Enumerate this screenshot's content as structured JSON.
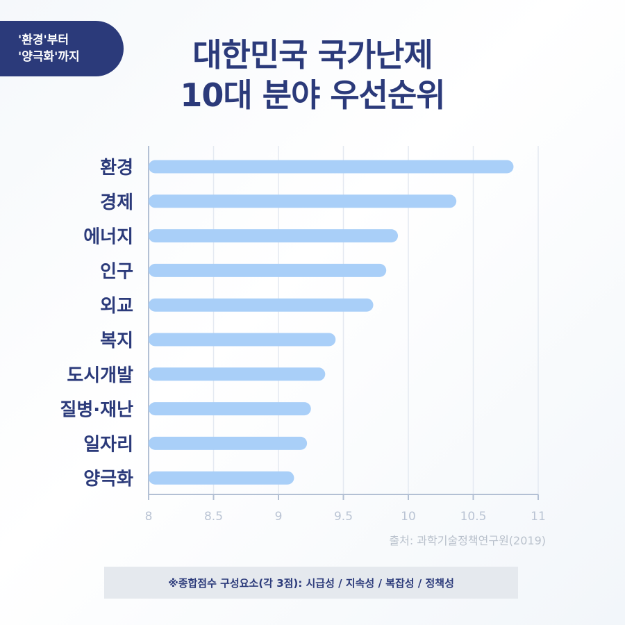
{
  "tag": {
    "line1": "'환경'부터",
    "line2": "'양극화'까지"
  },
  "title": {
    "line1": "대한민국 국가난제",
    "line2": "10대 분야 우선순위"
  },
  "source": "출처: 과학기술정책연구원(2019)",
  "note": "※종합점수 구성요소(각 3점): 시급성 / 지속성 / 복잡성 / 정책성",
  "colors": {
    "bar": "#a9cff8",
    "label": "#2b3a7a",
    "tick": "#b9c3d3",
    "grid": "#e4e9f1",
    "axis": "#b3c0d4"
  },
  "chart_data": {
    "type": "bar",
    "orientation": "horizontal",
    "categories": [
      "환경",
      "경제",
      "에너지",
      "인구",
      "외교",
      "복지",
      "도시개발",
      "질병·재난",
      "일자리",
      "양극화"
    ],
    "values": [
      10.81,
      10.37,
      9.92,
      9.83,
      9.73,
      9.44,
      9.36,
      9.25,
      9.22,
      9.12
    ],
    "xlim": [
      8,
      11
    ],
    "xticks": [
      "8",
      "8.5",
      "9",
      "9.5",
      "10",
      "10.5",
      "11"
    ],
    "grid": true
  }
}
